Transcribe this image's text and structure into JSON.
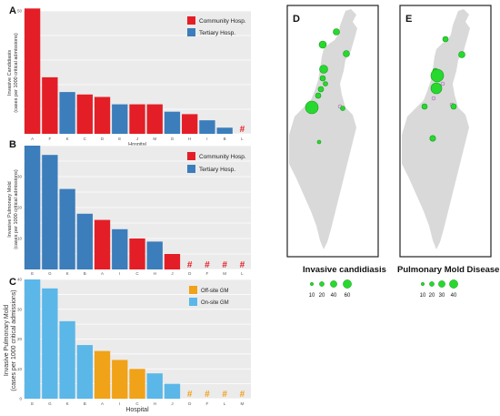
{
  "colors": {
    "community": "#e41e26",
    "tertiary": "#3c7dbb",
    "offsite": "#f0a218",
    "onsite": "#5bb7e8",
    "map_land": "#d9d9d9",
    "map_circle": "#27d92f"
  },
  "chart_data": [
    {
      "id": "A",
      "type": "bar",
      "panel_label": "A",
      "xlabel": "Hospital",
      "ylabel": "Invasive Candidiasis",
      "ylabel2": "(cases per 1000 critical admissions)",
      "ylim": [
        0,
        50
      ],
      "yticks": [
        "50"
      ],
      "categories": [
        "A",
        "F",
        "K",
        "C",
        "D",
        "E",
        "J",
        "M",
        "G",
        "H",
        "I",
        "B",
        "L"
      ],
      "values": [
        51,
        23,
        17,
        16,
        15,
        12,
        12,
        12,
        9,
        8,
        5.5,
        2.5,
        0
      ],
      "groups": [
        "community",
        "community",
        "tertiary",
        "community",
        "community",
        "tertiary",
        "community",
        "community",
        "tertiary",
        "community",
        "tertiary",
        "tertiary",
        "community"
      ],
      "zero_marker": "#",
      "legend": [
        {
          "label": "Community Hosp.",
          "group": "community"
        },
        {
          "label": "Tertiary Hosp.",
          "group": "tertiary"
        }
      ]
    },
    {
      "id": "B",
      "type": "bar",
      "panel_label": "B",
      "xlabel": "Hospital",
      "ylabel": "Invasive Pulmonary Mold",
      "ylabel2": "(cases per 1000 critical admissions)",
      "ylim": [
        0,
        40
      ],
      "yticks": [
        "10",
        "20",
        "30"
      ],
      "categories": [
        "E",
        "G",
        "K",
        "B",
        "A",
        "I",
        "C",
        "H",
        "J",
        "D",
        "F",
        "M",
        "L"
      ],
      "values": [
        40,
        37,
        26,
        18,
        16,
        13,
        10,
        9,
        5,
        0,
        0,
        0,
        0
      ],
      "groups": [
        "tertiary",
        "tertiary",
        "tertiary",
        "tertiary",
        "community",
        "tertiary",
        "community",
        "tertiary",
        "community",
        "community",
        "community",
        "community",
        "community"
      ],
      "zero_marker": "#",
      "legend": [
        {
          "label": "Community Hosp.",
          "group": "community"
        },
        {
          "label": "Tertiary Hosp.",
          "group": "tertiary"
        }
      ]
    },
    {
      "id": "C",
      "type": "bar",
      "panel_label": "C",
      "xlabel": "Hospital",
      "ylabel": "Invasive Pulmonary Mold",
      "ylabel2": "(cases per 1000 critical admissions)",
      "ylim": [
        0,
        40
      ],
      "yticks": [
        "0",
        "10",
        "20",
        "30",
        "40"
      ],
      "categories": [
        "E",
        "G",
        "K",
        "B",
        "A",
        "I",
        "C",
        "H",
        "J",
        "D",
        "F",
        "L",
        "M"
      ],
      "values": [
        40,
        37,
        26,
        18,
        16,
        13,
        10,
        8.5,
        5,
        0,
        0,
        0,
        0
      ],
      "groups": [
        "onsite",
        "onsite",
        "onsite",
        "onsite",
        "offsite",
        "offsite",
        "offsite",
        "onsite",
        "onsite",
        "offsite",
        "offsite",
        "offsite",
        "offsite"
      ],
      "zero_marker": "#",
      "legend": [
        {
          "label": "Off-site GM",
          "group": "offsite"
        },
        {
          "label": "On-site GM",
          "group": "onsite"
        }
      ]
    }
  ],
  "maps": [
    {
      "panel_label": "D",
      "title": "Invasive candidiasis",
      "size_legend": [
        "10",
        "20",
        "40",
        "60"
      ]
    },
    {
      "panel_label": "E",
      "title": "Pulmonary Mold Disease",
      "size_legend": [
        "10",
        "20",
        "30",
        "40"
      ]
    }
  ]
}
